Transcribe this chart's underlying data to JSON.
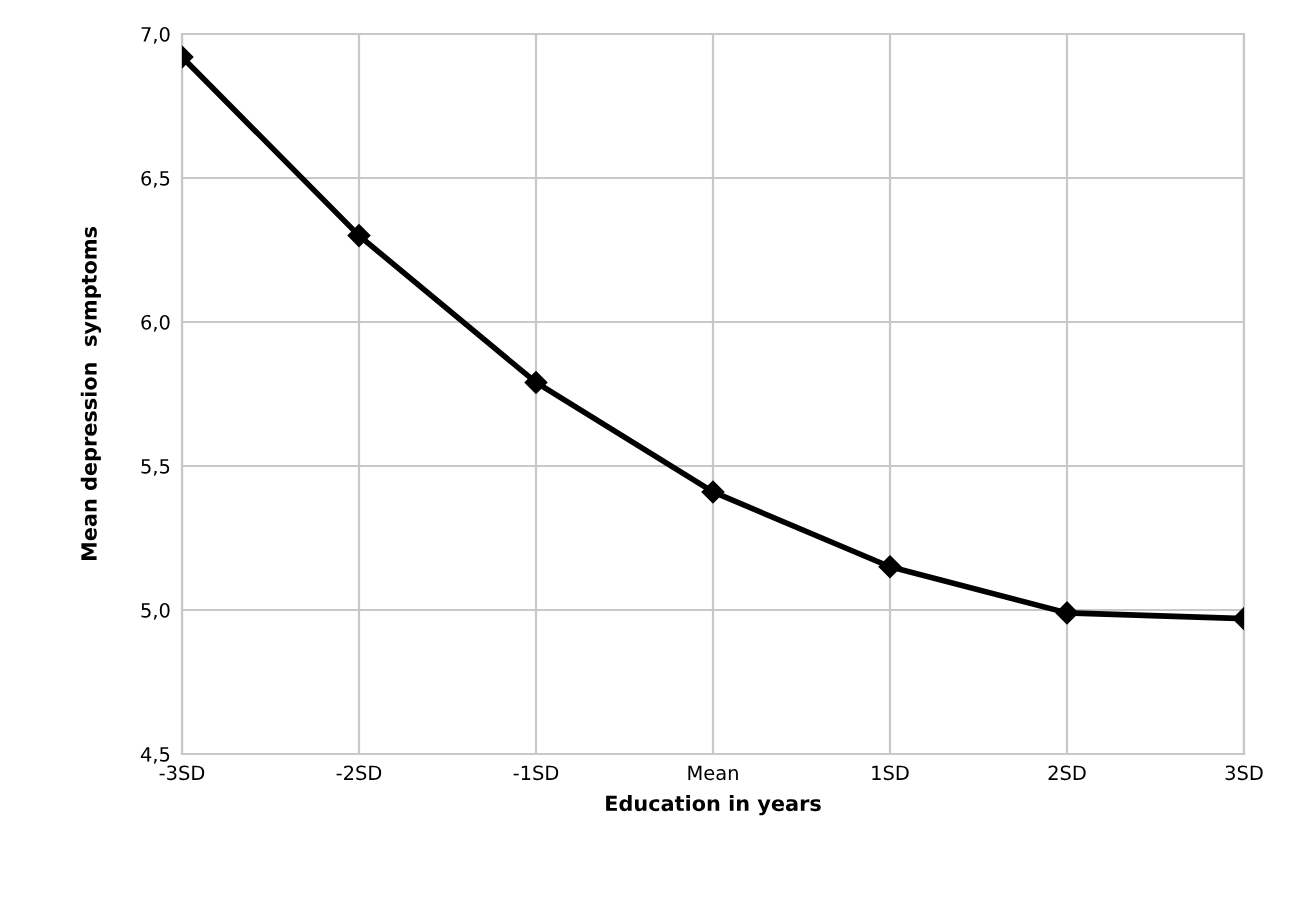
{
  "chart_data": {
    "type": "line",
    "xlabel": "Education in years",
    "ylabel": "Mean depression  symptoms",
    "categories": [
      "-3SD",
      "-2SD",
      "-1SD",
      "Mean",
      "1SD",
      "2SD",
      "3SD"
    ],
    "series": [
      {
        "color": "#000000",
        "values": [
          6.92,
          6.3,
          5.79,
          5.41,
          5.15,
          4.99,
          4.97
        ]
      }
    ],
    "ylim": [
      4.5,
      7.0
    ],
    "yticks": [
      {
        "value": 4.5,
        "label": "4,5"
      },
      {
        "value": 5.0,
        "label": "5,0"
      },
      {
        "value": 5.5,
        "label": "5,5"
      },
      {
        "value": 6.0,
        "label": "6,0"
      },
      {
        "value": 6.5,
        "label": "6,5"
      },
      {
        "value": 7.0,
        "label": "7,0"
      }
    ],
    "grid": true,
    "marker": "diamond",
    "line_style": "solid"
  }
}
